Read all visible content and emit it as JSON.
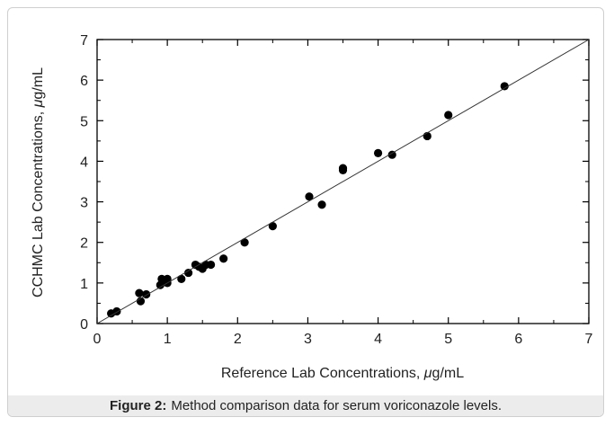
{
  "figure": {
    "caption_label": "Figure 2:",
    "caption_text": "Method comparison data for serum voriconazole levels."
  },
  "chart_data": {
    "type": "scatter",
    "xlabel_main": "Reference Lab Concentrations, ",
    "xlabel_mu": "μ",
    "xlabel_unit": "g/mL",
    "ylabel_main": "CCHMC Lab Concentrations, ",
    "ylabel_mu": "μ",
    "ylabel_unit": "g/mL",
    "xlim": [
      0,
      7
    ],
    "ylim": [
      0,
      7
    ],
    "xticks": [
      "0",
      "1",
      "2",
      "3",
      "4",
      "5",
      "6",
      "7"
    ],
    "yticks": [
      "0",
      "1",
      "2",
      "3",
      "4",
      "5",
      "6",
      "7"
    ],
    "grid": false,
    "reference_line": [
      [
        0,
        0
      ],
      [
        7,
        7
      ]
    ],
    "marker_color": "#000000",
    "points": [
      [
        0.2,
        0.25
      ],
      [
        0.28,
        0.3
      ],
      [
        0.6,
        0.75
      ],
      [
        0.62,
        0.55
      ],
      [
        0.7,
        0.72
      ],
      [
        0.9,
        0.95
      ],
      [
        0.92,
        1.1
      ],
      [
        1.0,
        1.0
      ],
      [
        1.0,
        1.1
      ],
      [
        1.2,
        1.1
      ],
      [
        1.3,
        1.25
      ],
      [
        1.4,
        1.45
      ],
      [
        1.45,
        1.4
      ],
      [
        1.5,
        1.35
      ],
      [
        1.55,
        1.45
      ],
      [
        1.62,
        1.45
      ],
      [
        1.8,
        1.6
      ],
      [
        2.1,
        2.0
      ],
      [
        2.5,
        2.4
      ],
      [
        3.02,
        3.13
      ],
      [
        3.2,
        2.93
      ],
      [
        3.5,
        3.78
      ],
      [
        3.5,
        3.83
      ],
      [
        4.0,
        4.2
      ],
      [
        4.2,
        4.16
      ],
      [
        4.7,
        4.62
      ],
      [
        5.0,
        5.14
      ],
      [
        5.8,
        5.85
      ]
    ]
  }
}
